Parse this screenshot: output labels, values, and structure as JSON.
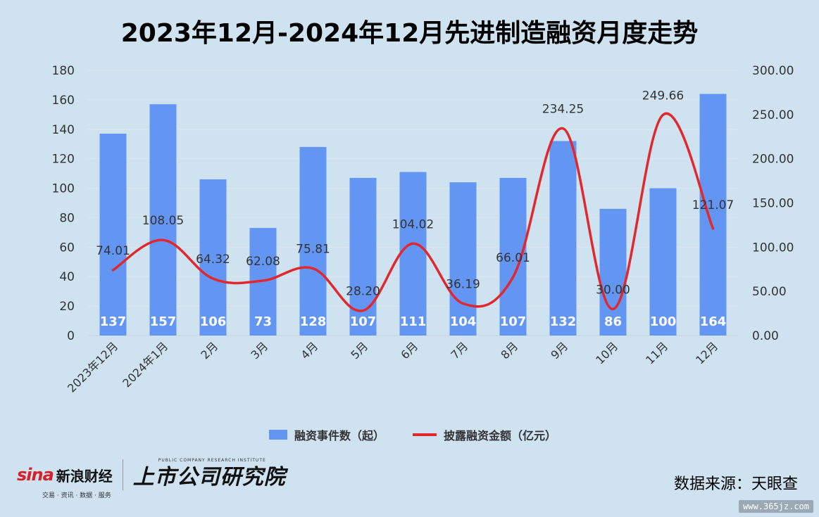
{
  "chart_data": {
    "type": "bar",
    "title": "2023年12月-2024年12月先进制造融资月度走势",
    "categories": [
      "2023年12月",
      "2024年1月",
      "2月",
      "3月",
      "4月",
      "5月",
      "6月",
      "7月",
      "8月",
      "9月",
      "10月",
      "11月",
      "12月"
    ],
    "series": [
      {
        "name": "融资事件数（起）",
        "type": "bar",
        "axis": "left",
        "color": "#6396f2",
        "values": [
          137,
          157,
          106,
          73,
          128,
          107,
          111,
          104,
          107,
          132,
          86,
          100,
          164
        ],
        "labels": [
          "137",
          "157",
          "106",
          "73",
          "128",
          "107",
          "111",
          "104",
          "107",
          "132",
          "86",
          "100",
          "164"
        ]
      },
      {
        "name": "披露融资金额（亿元）",
        "type": "line",
        "axis": "right",
        "color": "#e0282e",
        "values": [
          74.01,
          108.05,
          64.32,
          62.08,
          75.81,
          28.2,
          104.02,
          36.19,
          66.01,
          234.25,
          30.0,
          249.66,
          121.07
        ],
        "labels": [
          "74.01",
          "108.05",
          "64.32",
          "62.08",
          "75.81",
          "28.20",
          "104.02",
          "36.19",
          "66.01",
          "234.25",
          "30.00",
          "249.66",
          "121.07"
        ]
      }
    ],
    "y_left": {
      "min": 0,
      "max": 180,
      "ticks": [
        "0",
        "20",
        "40",
        "60",
        "80",
        "100",
        "120",
        "140",
        "160",
        "180"
      ]
    },
    "y_right": {
      "min": 0,
      "max": 300,
      "ticks": [
        "0.00",
        "50.00",
        "100.00",
        "150.00",
        "200.00",
        "250.00",
        "300.00"
      ]
    },
    "grid": true,
    "legend_position": "bottom"
  },
  "legend": {
    "bar_label": "融资事件数（起）",
    "line_label": "披露融资金额（亿元）"
  },
  "footer": {
    "sina_word": "sina",
    "sina_cn": "新浪财经",
    "sina_sub": "交易 · 资讯 · 数据 · 服务",
    "institute_en": "PUBLIC COMPANY RESEARCH INSTITUTE",
    "institute_cn": "上市公司研究院",
    "source": "数据来源：天眼查",
    "watermark": "www.365jz.com"
  }
}
